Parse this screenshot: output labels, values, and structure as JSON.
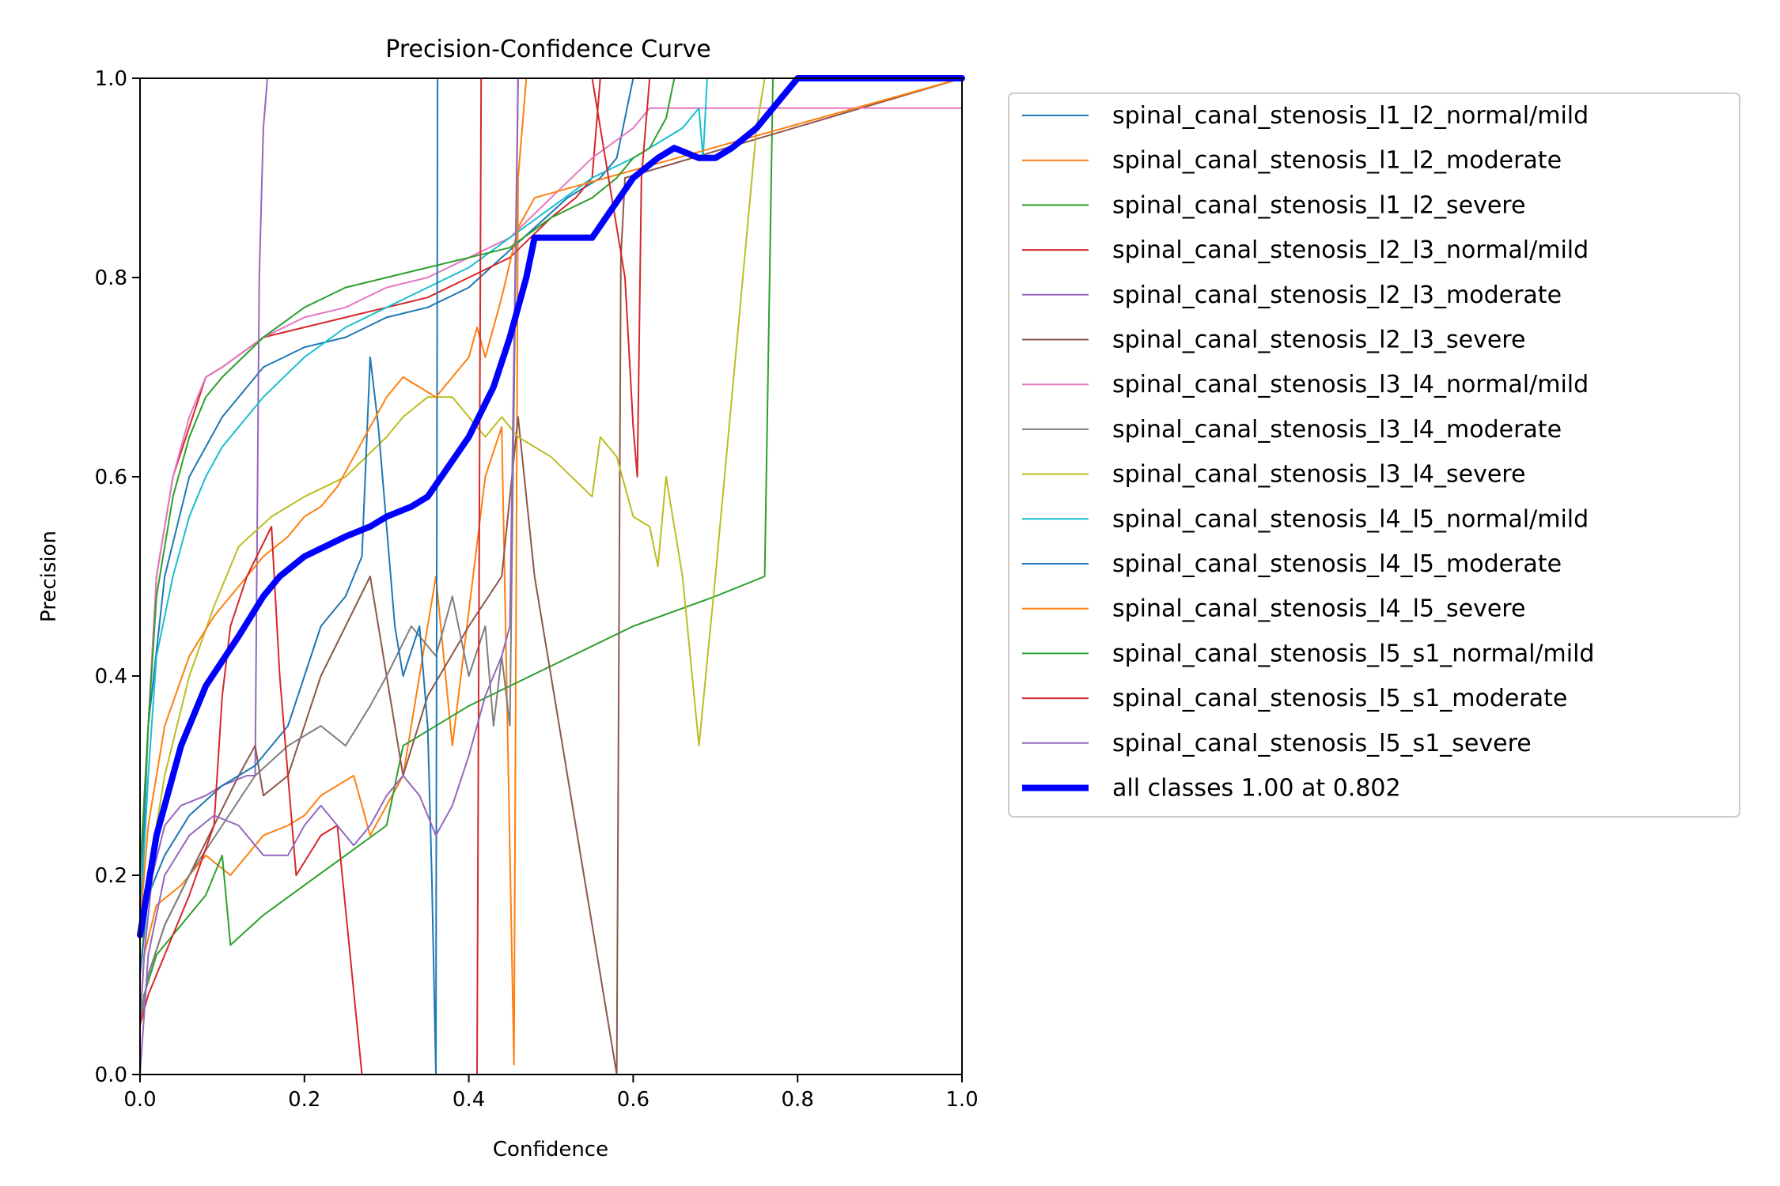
{
  "chart_data": {
    "type": "line",
    "title": "Precision-Confidence Curve",
    "xlabel": "Confidence",
    "ylabel": "Precision",
    "xlim": [
      0,
      1
    ],
    "ylim": [
      0,
      1
    ],
    "xticks": [
      "0.0",
      "0.2",
      "0.4",
      "0.6",
      "0.8",
      "1.0"
    ],
    "yticks": [
      "0.0",
      "0.2",
      "0.4",
      "0.6",
      "0.8",
      "1.0"
    ],
    "grid": false,
    "legend_position": "outside-right",
    "series": [
      {
        "name": "spinal_canal_stenosis_l1_l2_normal/mild",
        "color": "#1f77b4",
        "x": [
          0,
          0.01,
          0.03,
          0.06,
          0.1,
          0.15,
          0.2,
          0.25,
          0.3,
          0.35,
          0.4,
          0.44,
          0.48,
          0.52,
          0.56,
          0.58,
          0.6,
          0.62,
          1
        ],
        "y": [
          0.15,
          0.35,
          0.5,
          0.6,
          0.66,
          0.71,
          0.73,
          0.74,
          0.76,
          0.77,
          0.79,
          0.82,
          0.85,
          0.88,
          0.9,
          0.92,
          1,
          1,
          1
        ]
      },
      {
        "name": "spinal_canal_stenosis_l1_l2_moderate",
        "color": "#ff7f0e",
        "x": [
          0,
          0.005,
          0.02,
          0.05,
          0.08,
          0.11,
          0.12,
          0.15,
          0.18,
          0.2,
          0.22,
          0.26,
          0.28,
          0.3,
          0.32,
          0.35,
          0.36,
          0.38,
          0.42,
          0.44,
          0.455,
          0.46,
          0.47,
          1
        ],
        "y": [
          0.05,
          0.12,
          0.17,
          0.19,
          0.22,
          0.2,
          0.21,
          0.24,
          0.25,
          0.26,
          0.28,
          0.3,
          0.24,
          0.27,
          0.3,
          0.45,
          0.5,
          0.33,
          0.6,
          0.65,
          0.01,
          0.9,
          1,
          1
        ]
      },
      {
        "name": "spinal_canal_stenosis_l1_l2_severe",
        "color": "#2ca02c",
        "x": [
          0,
          0.005,
          0.02,
          0.05,
          0.08,
          0.1,
          0.11,
          0.15,
          0.2,
          0.25,
          0.3,
          0.32,
          0.4,
          0.5,
          0.6,
          0.7,
          0.76,
          0.77,
          1
        ],
        "y": [
          0.05,
          0.08,
          0.12,
          0.15,
          0.18,
          0.22,
          0.13,
          0.16,
          0.19,
          0.22,
          0.25,
          0.33,
          0.37,
          0.41,
          0.45,
          0.48,
          0.5,
          1,
          1
        ]
      },
      {
        "name": "spinal_canal_stenosis_l2_l3_normal/mild",
        "color": "#d62728",
        "x": [
          0,
          0.01,
          0.02,
          0.04,
          0.06,
          0.08,
          0.1,
          0.15,
          0.2,
          0.25,
          0.3,
          0.35,
          0.4,
          0.45,
          0.5,
          0.53,
          0.55,
          0.56,
          1
        ],
        "y": [
          0.2,
          0.35,
          0.5,
          0.6,
          0.65,
          0.7,
          0.71,
          0.74,
          0.75,
          0.76,
          0.77,
          0.78,
          0.8,
          0.82,
          0.86,
          0.88,
          0.9,
          1,
          1
        ]
      },
      {
        "name": "spinal_canal_stenosis_l2_l3_moderate",
        "color": "#9467bd",
        "x": [
          0,
          0.005,
          0.015,
          0.03,
          0.05,
          0.08,
          0.1,
          0.13,
          0.14,
          0.145,
          0.15,
          0.155,
          1
        ],
        "y": [
          0.05,
          0.12,
          0.2,
          0.25,
          0.27,
          0.28,
          0.29,
          0.3,
          0.3,
          0.8,
          0.95,
          1,
          1
        ]
      },
      {
        "name": "spinal_canal_stenosis_l2_l3_severe",
        "color": "#8c564b",
        "x": [
          0,
          0.01,
          0.03,
          0.06,
          0.09,
          0.12,
          0.14,
          0.15,
          0.18,
          0.22,
          0.25,
          0.28,
          0.32,
          0.35,
          0.4,
          0.44,
          0.46,
          0.48,
          0.52,
          0.55,
          0.58,
          0.585,
          0.59,
          1
        ],
        "y": [
          0.05,
          0.1,
          0.15,
          0.2,
          0.25,
          0.3,
          0.33,
          0.28,
          0.3,
          0.4,
          0.45,
          0.5,
          0.3,
          0.38,
          0.45,
          0.5,
          0.66,
          0.5,
          0.3,
          0.15,
          0.0,
          0.82,
          0.9,
          1
        ]
      },
      {
        "name": "spinal_canal_stenosis_l3_l4_normal/mild",
        "color": "#e377c2",
        "x": [
          0,
          0.01,
          0.02,
          0.04,
          0.06,
          0.08,
          0.1,
          0.15,
          0.2,
          0.25,
          0.3,
          0.35,
          0.4,
          0.45,
          0.5,
          0.55,
          0.6,
          0.62,
          1
        ],
        "y": [
          0.2,
          0.35,
          0.5,
          0.6,
          0.66,
          0.7,
          0.71,
          0.74,
          0.76,
          0.77,
          0.79,
          0.8,
          0.82,
          0.84,
          0.88,
          0.92,
          0.95,
          0.97,
          0.97
        ]
      },
      {
        "name": "spinal_canal_stenosis_l3_l4_moderate",
        "color": "#7f7f7f",
        "x": [
          0,
          0.01,
          0.03,
          0.06,
          0.1,
          0.14,
          0.18,
          0.22,
          0.25,
          0.28,
          0.3,
          0.33,
          0.36,
          0.38,
          0.4,
          0.42,
          0.43,
          0.44,
          0.45,
          0.46,
          1
        ],
        "y": [
          0.05,
          0.1,
          0.15,
          0.2,
          0.25,
          0.3,
          0.33,
          0.35,
          0.33,
          0.37,
          0.4,
          0.45,
          0.42,
          0.48,
          0.4,
          0.45,
          0.35,
          0.42,
          0.35,
          1,
          1
        ]
      },
      {
        "name": "spinal_canal_stenosis_l3_l4_severe",
        "color": "#bcbd22",
        "x": [
          0,
          0.01,
          0.03,
          0.06,
          0.09,
          0.12,
          0.16,
          0.2,
          0.25,
          0.3,
          0.32,
          0.35,
          0.38,
          0.4,
          0.42,
          0.44,
          0.46,
          0.5,
          0.55,
          0.56,
          0.58,
          0.6,
          0.62,
          0.63,
          0.64,
          0.66,
          0.68,
          0.7,
          0.75,
          0.76,
          1
        ],
        "y": [
          0.1,
          0.2,
          0.3,
          0.4,
          0.47,
          0.53,
          0.56,
          0.58,
          0.6,
          0.64,
          0.66,
          0.68,
          0.68,
          0.66,
          0.64,
          0.66,
          0.64,
          0.62,
          0.58,
          0.64,
          0.62,
          0.56,
          0.55,
          0.51,
          0.6,
          0.5,
          0.33,
          0.5,
          0.95,
          1,
          1
        ]
      },
      {
        "name": "spinal_canal_stenosis_l4_l5_normal/mild",
        "color": "#17becf",
        "x": [
          0,
          0.01,
          0.02,
          0.04,
          0.06,
          0.08,
          0.1,
          0.15,
          0.2,
          0.25,
          0.3,
          0.35,
          0.4,
          0.45,
          0.5,
          0.55,
          0.6,
          0.64,
          0.66,
          0.68,
          0.685,
          0.69,
          1
        ],
        "y": [
          0.15,
          0.3,
          0.42,
          0.5,
          0.56,
          0.6,
          0.63,
          0.68,
          0.72,
          0.75,
          0.77,
          0.79,
          0.81,
          0.84,
          0.87,
          0.9,
          0.92,
          0.94,
          0.95,
          0.97,
          0.92,
          1,
          1
        ]
      },
      {
        "name": "spinal_canal_stenosis_l4_l5_moderate",
        "color": "#1f77b4",
        "x": [
          0,
          0.01,
          0.03,
          0.06,
          0.1,
          0.14,
          0.18,
          0.2,
          0.22,
          0.25,
          0.27,
          0.28,
          0.29,
          0.3,
          0.31,
          0.32,
          0.34,
          0.35,
          0.355,
          0.36,
          0.362,
          0.365,
          1
        ],
        "y": [
          0.1,
          0.18,
          0.22,
          0.26,
          0.29,
          0.31,
          0.35,
          0.4,
          0.45,
          0.48,
          0.52,
          0.72,
          0.65,
          0.55,
          0.45,
          0.4,
          0.45,
          0.35,
          0.2,
          0.0,
          1,
          1,
          1
        ]
      },
      {
        "name": "spinal_canal_stenosis_l4_l5_severe",
        "color": "#ff7f0e",
        "x": [
          0,
          0.01,
          0.03,
          0.06,
          0.09,
          0.12,
          0.15,
          0.18,
          0.2,
          0.22,
          0.24,
          0.26,
          0.28,
          0.3,
          0.32,
          0.34,
          0.36,
          0.38,
          0.4,
          0.41,
          0.42,
          0.44,
          0.46,
          0.48,
          1
        ],
        "y": [
          0.15,
          0.25,
          0.35,
          0.42,
          0.46,
          0.49,
          0.52,
          0.54,
          0.56,
          0.57,
          0.59,
          0.62,
          0.65,
          0.68,
          0.7,
          0.69,
          0.68,
          0.7,
          0.72,
          0.75,
          0.72,
          0.78,
          0.85,
          0.88,
          1
        ]
      },
      {
        "name": "spinal_canal_stenosis_l5_s1_normal/mild",
        "color": "#2ca02c",
        "x": [
          0,
          0.01,
          0.02,
          0.04,
          0.06,
          0.08,
          0.1,
          0.15,
          0.2,
          0.25,
          0.3,
          0.35,
          0.4,
          0.45,
          0.5,
          0.55,
          0.58,
          0.6,
          0.62,
          0.64,
          0.65,
          1
        ],
        "y": [
          0.2,
          0.35,
          0.48,
          0.58,
          0.64,
          0.68,
          0.7,
          0.74,
          0.77,
          0.79,
          0.8,
          0.81,
          0.82,
          0.83,
          0.86,
          0.88,
          0.9,
          0.92,
          0.93,
          0.96,
          1,
          1
        ]
      },
      {
        "name": "spinal_canal_stenosis_l5_s1_moderate",
        "color": "#d62728",
        "x": [
          0,
          0.01,
          0.03,
          0.06,
          0.09,
          0.1,
          0.11,
          0.13,
          0.16,
          0.17,
          0.18,
          0.19,
          0.22,
          0.24,
          0.27,
          0.3,
          0.35,
          0.41,
          0.415,
          0.42,
          0.5,
          0.55,
          0.59,
          0.6,
          0.605,
          0.61,
          0.62,
          1
        ],
        "y": [
          0.05,
          0.08,
          0.12,
          0.18,
          0.25,
          0.38,
          0.45,
          0.5,
          0.55,
          0.4,
          0.3,
          0.2,
          0.24,
          0.25,
          0.0,
          0.0,
          0.0,
          0.0,
          1,
          1,
          1,
          1,
          0.8,
          0.65,
          0.6,
          0.9,
          1,
          1
        ]
      },
      {
        "name": "spinal_canal_stenosis_l5_s1_severe",
        "color": "#9467bd",
        "x": [
          0,
          0.01,
          0.03,
          0.06,
          0.09,
          0.12,
          0.15,
          0.18,
          0.2,
          0.22,
          0.24,
          0.26,
          0.28,
          0.3,
          0.32,
          0.34,
          0.36,
          0.38,
          0.4,
          0.42,
          0.44,
          0.45,
          0.46,
          1
        ],
        "y": [
          0.0,
          0.12,
          0.2,
          0.24,
          0.26,
          0.25,
          0.22,
          0.22,
          0.25,
          0.27,
          0.25,
          0.23,
          0.25,
          0.28,
          0.3,
          0.28,
          0.24,
          0.27,
          0.32,
          0.38,
          0.42,
          0.45,
          1,
          1
        ]
      },
      {
        "name": "all classes 1.00 at 0.802",
        "color": "#0000ff",
        "bold": true,
        "x": [
          0,
          0.02,
          0.05,
          0.08,
          0.12,
          0.15,
          0.17,
          0.2,
          0.25,
          0.28,
          0.3,
          0.33,
          0.35,
          0.4,
          0.43,
          0.45,
          0.47,
          0.48,
          0.5,
          0.55,
          0.6,
          0.63,
          0.65,
          0.68,
          0.7,
          0.72,
          0.75,
          0.78,
          0.8,
          1
        ],
        "y": [
          0.14,
          0.24,
          0.33,
          0.39,
          0.44,
          0.48,
          0.5,
          0.52,
          0.54,
          0.55,
          0.56,
          0.57,
          0.58,
          0.64,
          0.69,
          0.74,
          0.8,
          0.84,
          0.84,
          0.84,
          0.9,
          0.92,
          0.93,
          0.92,
          0.92,
          0.93,
          0.95,
          0.98,
          1,
          1
        ]
      }
    ]
  }
}
